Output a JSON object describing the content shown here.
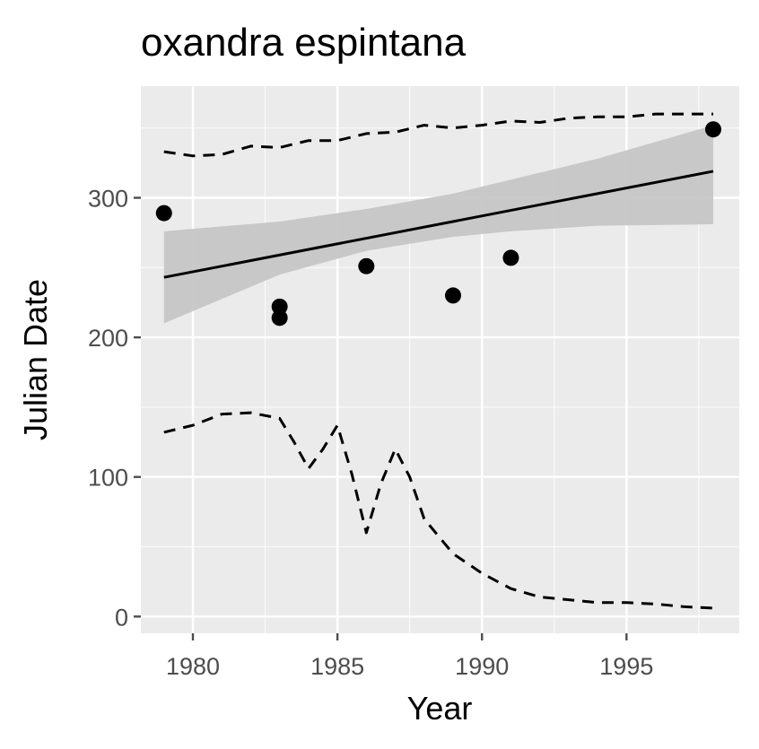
{
  "chart_data": {
    "type": "scatter",
    "title": "oxandra espintana",
    "xlabel": "Year",
    "ylabel": "Julian Date",
    "xlim": [
      1978.2,
      1998.9
    ],
    "ylim": [
      -12,
      380
    ],
    "x_ticks": [
      1980,
      1985,
      1990,
      1995
    ],
    "y_ticks": [
      0,
      100,
      200,
      300
    ],
    "grid": true,
    "legend": "none",
    "colors": {
      "panel": "#ebebeb",
      "grid_major": "#ffffff",
      "ribbon": "#c6c6c6",
      "points": "#000000",
      "fit_line": "#000000",
      "ticks": "#4d4d4d"
    },
    "series": [
      {
        "type": "scatter",
        "points": [
          [
            1979,
            289
          ],
          [
            1983,
            222
          ],
          [
            1983,
            214
          ],
          [
            1986,
            251
          ],
          [
            1989,
            230
          ],
          [
            1991,
            257
          ],
          [
            1998,
            349
          ]
        ]
      },
      {
        "type": "line",
        "style": "solid",
        "points": [
          [
            1979,
            243
          ],
          [
            1998,
            319
          ]
        ]
      },
      {
        "type": "ribbon",
        "x": [
          1979,
          1983,
          1986,
          1989,
          1991,
          1994,
          1998
        ],
        "lower": [
          210,
          245,
          262,
          272,
          276,
          280,
          281
        ],
        "upper": [
          276,
          283,
          292,
          303,
          313,
          328,
          352
        ]
      },
      {
        "type": "line",
        "style": "dashed",
        "points": [
          [
            1979,
            333
          ],
          [
            1980,
            330
          ],
          [
            1981,
            331
          ],
          [
            1982,
            337
          ],
          [
            1983,
            336
          ],
          [
            1984,
            341
          ],
          [
            1985,
            341
          ],
          [
            1986,
            346
          ],
          [
            1987,
            347
          ],
          [
            1988,
            352
          ],
          [
            1989,
            350
          ],
          [
            1990,
            352
          ],
          [
            1991,
            355
          ],
          [
            1992,
            354
          ],
          [
            1993,
            357
          ],
          [
            1994,
            358
          ],
          [
            1995,
            358
          ],
          [
            1996,
            360
          ],
          [
            1997,
            360
          ],
          [
            1998,
            360
          ]
        ]
      },
      {
        "type": "line",
        "style": "dashed",
        "points": [
          [
            1979,
            132
          ],
          [
            1980,
            137
          ],
          [
            1981,
            145
          ],
          [
            1982,
            146
          ],
          [
            1983,
            142
          ],
          [
            1983.5,
            125
          ],
          [
            1984,
            106
          ],
          [
            1984.5,
            120
          ],
          [
            1985,
            137
          ],
          [
            1985.5,
            102
          ],
          [
            1986,
            60
          ],
          [
            1986.5,
            95
          ],
          [
            1987,
            120
          ],
          [
            1987.5,
            100
          ],
          [
            1988,
            70
          ],
          [
            1989,
            45
          ],
          [
            1990,
            31
          ],
          [
            1991,
            20
          ],
          [
            1992,
            14
          ],
          [
            1993,
            12
          ],
          [
            1994,
            10
          ],
          [
            1995,
            10
          ],
          [
            1996,
            9
          ],
          [
            1997,
            7
          ],
          [
            1998,
            6
          ]
        ]
      }
    ]
  }
}
